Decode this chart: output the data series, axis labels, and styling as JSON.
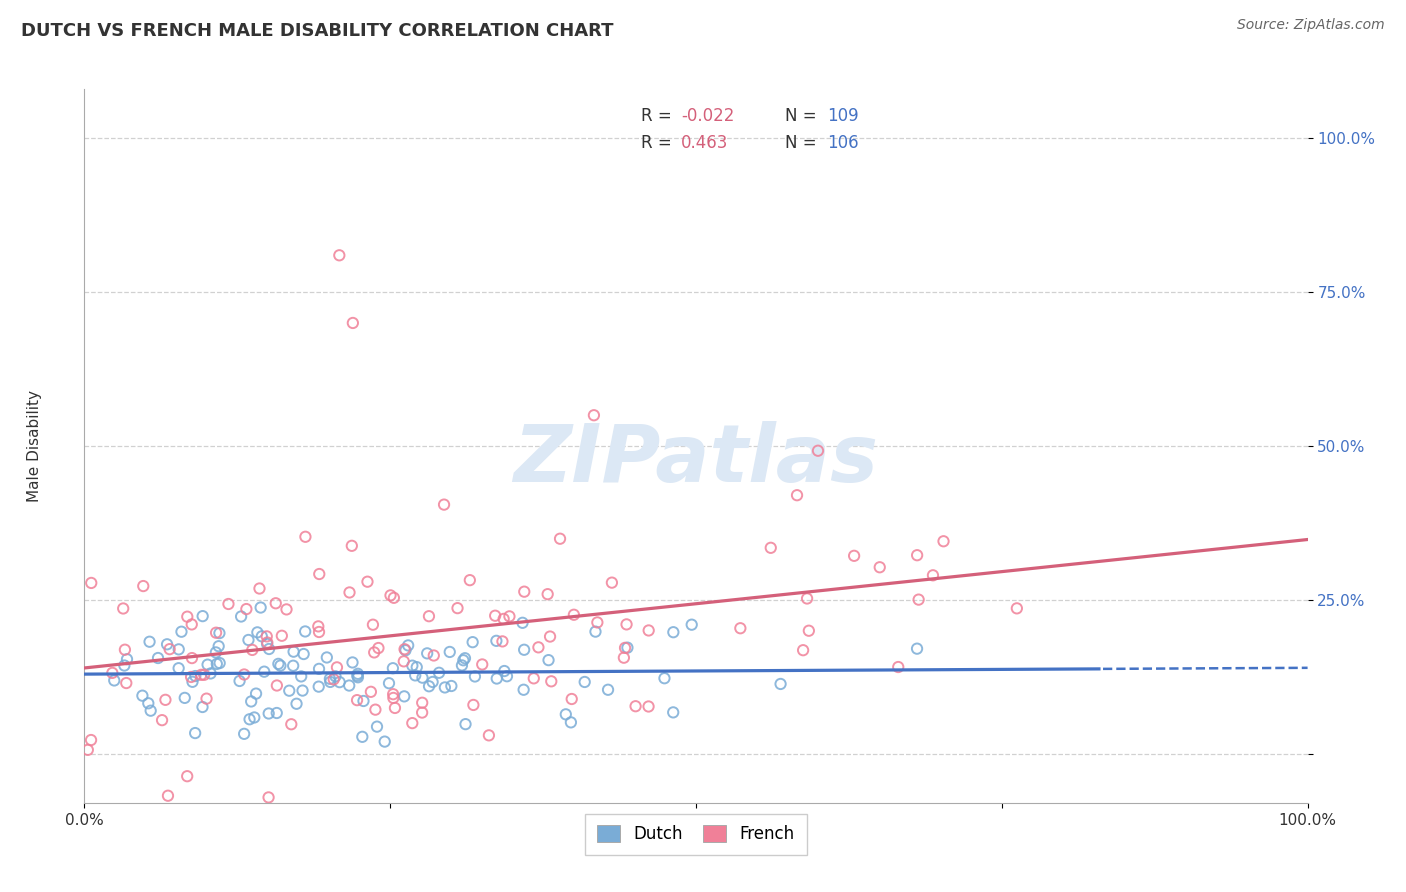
{
  "title": "DUTCH VS FRENCH MALE DISABILITY CORRELATION CHART",
  "source": "Source: ZipAtlas.com",
  "ylabel": "Male Disability",
  "xlim": [
    0,
    1
  ],
  "ylim": [
    -0.08,
    1.08
  ],
  "xtick_positions": [
    0.0,
    0.25,
    0.5,
    0.75,
    1.0
  ],
  "xtick_labels": [
    "0.0%",
    "",
    "",
    "",
    "100.0%"
  ],
  "ytick_positions": [
    0.0,
    0.25,
    0.5,
    0.75,
    1.0
  ],
  "ytick_labels": [
    "",
    "25.0%",
    "50.0%",
    "75.0%",
    "100.0%"
  ],
  "grid_color": "#cccccc",
  "background_color": "#ffffff",
  "dutch_marker_color": "#7aacd6",
  "french_marker_color": "#f08098",
  "dutch_line_color": "#4472c4",
  "french_line_color": "#d4607a",
  "watermark": "ZIPatlas",
  "watermark_color": "#dce8f5",
  "legend_r_dutch": "-0.022",
  "legend_n_dutch": "109",
  "legend_r_french": "0.463",
  "legend_n_french": "106",
  "dutch_n": 109,
  "french_n": 106,
  "dutch_R": -0.022,
  "french_R": 0.463,
  "r_text_color": "#d4607a",
  "n_text_color": "#4472c4",
  "title_color": "#333333",
  "source_color": "#666666",
  "axis_tick_color_right": "#4472c4",
  "axis_label_color": "#333333"
}
